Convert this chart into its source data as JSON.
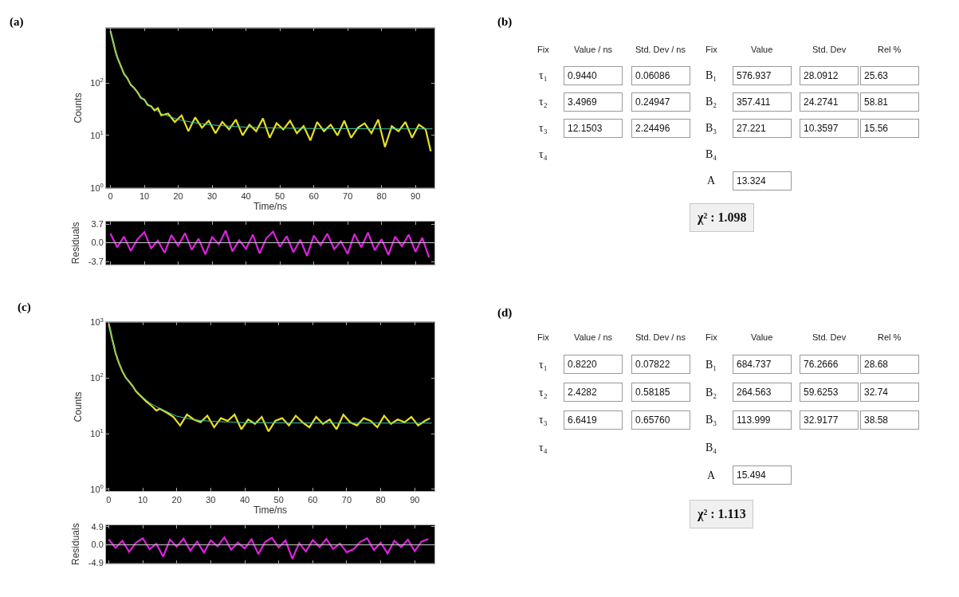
{
  "chart_data": [
    {
      "type": "line",
      "title": "(a)",
      "xlabel": "Time/ns",
      "ylabel": "Counts",
      "log": "y",
      "grid": false,
      "xlim": [
        -1.3,
        95.6
      ],
      "ylim": [
        1,
        1100
      ],
      "xticks": [
        0,
        10,
        20,
        30,
        40,
        50,
        60,
        70,
        80,
        90
      ],
      "yticks": [
        {
          "value": 1,
          "label": "10$^{0}$"
        },
        {
          "value": 10,
          "label": "10$^{1}$"
        },
        {
          "value": 100,
          "label": "10$^{2}$"
        }
      ],
      "series": [
        {
          "color": "#e8e020",
          "x": [
            0,
            0.5,
            1,
            1.5,
            2,
            3,
            4,
            5,
            6,
            7,
            8,
            9,
            10,
            11,
            12,
            13,
            14,
            15,
            17,
            19,
            21,
            23,
            25,
            27,
            29,
            31,
            33,
            35,
            37,
            39,
            41,
            43,
            45,
            47,
            49,
            51,
            53,
            55,
            57,
            59,
            61,
            63,
            65,
            67,
            69,
            71,
            73,
            75,
            77,
            79,
            81,
            83,
            85,
            87,
            89,
            91,
            93,
            94.5
          ],
          "values": [
            980,
            720,
            540,
            400,
            310,
            215,
            150,
            122,
            92,
            80,
            66,
            52,
            48,
            38,
            36,
            30,
            33,
            24,
            26,
            18,
            24,
            12,
            22,
            14,
            19,
            11,
            18,
            13,
            20,
            10,
            16,
            12,
            21,
            9,
            17,
            13,
            19,
            11,
            15,
            8,
            18,
            12,
            16,
            10,
            19,
            9,
            14,
            17,
            11,
            20,
            6,
            15,
            12,
            18,
            9,
            16,
            13,
            5
          ]
        },
        {
          "color": "#40c8a8",
          "x": [
            0,
            1,
            2,
            3,
            4,
            5,
            6,
            8,
            10,
            12,
            15,
            20,
            25,
            30,
            40,
            50,
            60,
            70,
            80,
            95
          ],
          "values": [
            975,
            531,
            307,
            210,
            153,
            119,
            95,
            64,
            46,
            35,
            26,
            20,
            17.3,
            15.8,
            14.3,
            13.8,
            13.5,
            13.4,
            13.3,
            13.3
          ]
        }
      ]
    },
    {
      "type": "line",
      "ylabel": "Residuals",
      "tick_labels": "y",
      "grid": false,
      "xlim": [
        -1.3,
        95.6
      ],
      "ylim": [
        -4.3,
        4.2
      ],
      "xticks": [
        0,
        10,
        20,
        30,
        40,
        50,
        60,
        70,
        80,
        90
      ],
      "yticks": [
        -3.7,
        {
          "value": 0,
          "label": "0.0"
        },
        3.7
      ],
      "ref_lines": [
        {
          "axis": "y",
          "value": 0,
          "color": "#c8c8c8"
        }
      ],
      "series": [
        {
          "color": "#e020e0",
          "x": [
            0,
            2,
            4,
            6,
            8,
            10,
            12,
            14,
            16,
            18,
            20,
            22,
            24,
            26,
            28,
            30,
            32,
            34,
            36,
            38,
            40,
            42,
            44,
            46,
            48,
            50,
            52,
            54,
            56,
            58,
            60,
            62,
            64,
            66,
            68,
            70,
            72,
            74,
            76,
            78,
            80,
            82,
            84,
            86,
            88,
            90,
            92,
            94
          ],
          "values": [
            1.8,
            -0.9,
            1.2,
            -1.6,
            0.7,
            2.1,
            -1.1,
            0.4,
            -2.0,
            1.5,
            -0.6,
            1.9,
            -1.4,
            0.8,
            -2.3,
            1.1,
            -0.3,
            2.4,
            -1.7,
            0.5,
            -1.2,
            1.6,
            -2.1,
            0.9,
            2.2,
            -0.8,
            1.3,
            -1.9,
            0.6,
            -2.6,
            1.4,
            -0.5,
            1.8,
            -1.3,
            0.3,
            -2.2,
            1.7,
            -0.9,
            2.0,
            -1.5,
            0.7,
            -2.4,
            1.2,
            -0.7,
            1.6,
            -1.8,
            1.0,
            -2.9
          ]
        }
      ]
    },
    {
      "type": "other",
      "title": "(b)",
      "categories": [
        "Fix",
        "Value / ns",
        "Std. Dev / ns",
        "Fix",
        "Value",
        "Std. Dev",
        "Rel %"
      ],
      "cell_labels": [
        [
          "τ₁",
          "0.9440",
          "0.06086",
          "B₁",
          "576.937",
          "28.0912",
          "25.63"
        ],
        [
          "τ₂",
          "3.4969",
          "0.24947",
          "B₂",
          "357.411",
          "24.2741",
          "58.81"
        ],
        [
          "τ₃",
          "12.1503",
          "2.24496",
          "B₃",
          "27.221",
          "10.3597",
          "15.56"
        ],
        [
          "τ₄",
          null,
          null,
          "B₄",
          null,
          null,
          null
        ],
        [
          null,
          null,
          null,
          "A",
          "13.324",
          null,
          null
        ]
      ],
      "annotations": [
        "χ² : 1.098"
      ]
    },
    {
      "type": "line",
      "title": "(c)",
      "xlabel": "Time/ns",
      "ylabel": "Counts",
      "log": "y",
      "grid": false,
      "xlim": [
        -0.8,
        95.8
      ],
      "ylim": [
        0.92,
        1000
      ],
      "xticks": [
        0,
        10,
        20,
        30,
        40,
        50,
        60,
        70,
        80,
        90
      ],
      "yticks": [
        {
          "value": 1,
          "label": "10$^{0}$"
        },
        {
          "value": 10,
          "label": "10$^{1}$"
        },
        {
          "value": 100,
          "label": "10$^{2}$"
        },
        {
          "value": 1000,
          "label": "10$^{3}$"
        }
      ],
      "series": [
        {
          "color": "#e8e020",
          "x": [
            0,
            0.5,
            1,
            1.5,
            2,
            3,
            4,
            5,
            6,
            7,
            8,
            9,
            10,
            11,
            12,
            13,
            14,
            15,
            17,
            19,
            21,
            23,
            25,
            27,
            29,
            31,
            33,
            35,
            37,
            39,
            41,
            43,
            45,
            47,
            49,
            51,
            53,
            55,
            57,
            59,
            61,
            63,
            65,
            67,
            69,
            71,
            73,
            75,
            77,
            79,
            81,
            83,
            85,
            87,
            89,
            91,
            93,
            94.5
          ],
          "values": [
            950,
            700,
            500,
            380,
            280,
            185,
            132,
            102,
            86,
            72,
            58,
            50,
            44,
            38,
            34,
            30,
            26,
            28,
            24,
            20,
            14,
            22,
            18,
            16,
            21,
            13,
            19,
            17,
            22,
            12,
            18,
            15,
            20,
            11,
            17,
            19,
            14,
            21,
            16,
            13,
            20,
            15,
            18,
            12,
            22,
            16,
            14,
            19,
            17,
            13,
            21,
            15,
            18,
            16,
            20,
            14,
            17,
            19
          ]
        },
        {
          "color": "#40c8a8",
          "x": [
            0.2,
            1,
            2,
            3,
            4,
            5,
            6,
            8,
            10,
            12,
            15,
            20,
            25,
            30,
            40,
            60,
            80,
            95
          ],
          "values": [
            907,
            490,
            276,
            183,
            134,
            104,
            84,
            59,
            45,
            36,
            28.4,
            20.6,
            17.8,
            16.7,
            15.7,
            15.5,
            15.5,
            15.5
          ]
        }
      ]
    },
    {
      "type": "line",
      "ylabel": "Residuals",
      "tick_labels": "y",
      "grid": false,
      "xlim": [
        -0.8,
        95.8
      ],
      "ylim": [
        -5.0,
        5.4
      ],
      "xticks": [
        0,
        10,
        20,
        30,
        40,
        50,
        60,
        70,
        80,
        90
      ],
      "yticks": [
        -4.9,
        {
          "value": 0,
          "label": "0.0"
        },
        4.9
      ],
      "ref_lines": [
        {
          "axis": "y",
          "value": 0,
          "color": "#c8c8c8"
        }
      ],
      "series": [
        {
          "color": "#e020e0",
          "x": [
            0,
            2,
            4,
            6,
            8,
            10,
            12,
            14,
            16,
            18,
            20,
            22,
            24,
            26,
            28,
            30,
            32,
            34,
            36,
            38,
            40,
            42,
            44,
            46,
            48,
            50,
            52,
            54,
            56,
            58,
            60,
            62,
            64,
            66,
            68,
            70,
            72,
            74,
            76,
            78,
            80,
            82,
            84,
            86,
            88,
            90,
            92,
            94
          ],
          "values": [
            1.5,
            -0.8,
            1.1,
            -1.9,
            0.6,
            1.8,
            -1.2,
            0.3,
            -3.2,
            1.4,
            -0.5,
            1.7,
            -1.6,
            0.9,
            -2.1,
            1.2,
            -0.4,
            2.0,
            -1.3,
            0.6,
            -1.0,
            1.5,
            -2.5,
            0.8,
            1.9,
            -0.7,
            1.2,
            -3.8,
            0.5,
            -1.8,
            1.3,
            -0.6,
            1.6,
            -1.1,
            0.4,
            -2.0,
            -1.2,
            0.8,
            1.8,
            -1.4,
            0.6,
            -2.3,
            1.1,
            -0.6,
            1.4,
            -1.7,
            0.9,
            1.6
          ]
        }
      ]
    },
    {
      "type": "other",
      "title": "(d)",
      "categories": [
        "Fix",
        "Value / ns",
        "Std. Dev / ns",
        "Fix",
        "Value",
        "Std. Dev",
        "Rel %"
      ],
      "cell_labels": [
        [
          "τ₁",
          "0.8220",
          "0.07822",
          "B₁",
          "684.737",
          "76.2666",
          "28.68"
        ],
        [
          "τ₂",
          "2.4282",
          "0.58185",
          "B₂",
          "264.563",
          "59.6253",
          "32.74"
        ],
        [
          "τ₃",
          "6.6419",
          "0.65760",
          "B₃",
          "113.999",
          "32.9177",
          "38.58"
        ],
        [
          "τ₄",
          null,
          null,
          "B₄",
          null,
          null,
          null
        ],
        [
          null,
          null,
          null,
          "A",
          "15.494",
          null,
          null
        ]
      ],
      "annotations": [
        "χ² : 1.113"
      ]
    }
  ]
}
